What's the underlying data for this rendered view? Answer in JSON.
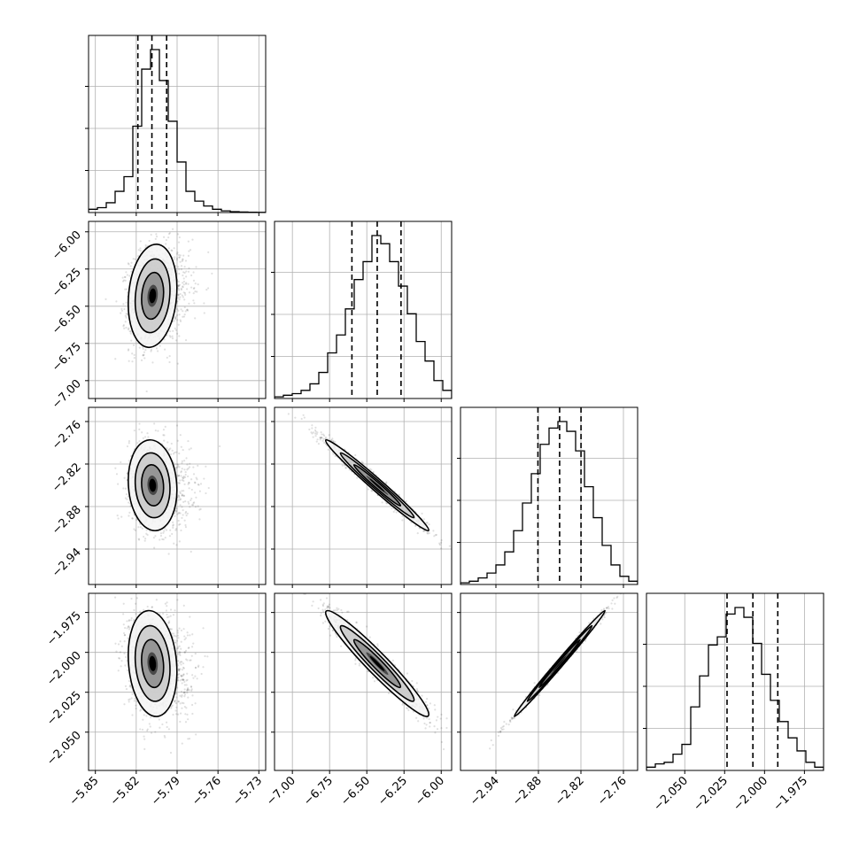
{
  "chart_data": {
    "type": "corner",
    "title": "",
    "grid": true,
    "colors": {
      "line": "#000000",
      "grid": "#b0b0b0",
      "scatter": "#000000"
    },
    "params": [
      {
        "range": [
          -5.855,
          -5.725
        ],
        "ticks": [
          -5.85,
          -5.82,
          -5.79,
          -5.76,
          -5.73
        ],
        "tick_labels": [
          "−5.85",
          "−5.82",
          "−5.79",
          "−5.76",
          "−5.73"
        ],
        "quantiles": [
          -5.8188,
          -5.8085,
          -5.7977
        ],
        "mean": -5.808,
        "sd": 0.0085,
        "hist": [
          0.02,
          0.03,
          0.06,
          0.13,
          0.22,
          0.53,
          0.88,
          1.0,
          0.81,
          0.56,
          0.31,
          0.13,
          0.07,
          0.04,
          0.02,
          0.01,
          0.005,
          0.003,
          0.002,
          0.001
        ]
      },
      {
        "range": [
          -7.12,
          -5.93
        ],
        "ticks": [
          -7.0,
          -6.75,
          -6.5,
          -6.25,
          -6.0
        ],
        "tick_labels": [
          "−7.00",
          "−6.75",
          "−6.50",
          "−6.25",
          "−6.00"
        ],
        "quantiles": [
          -6.6,
          -6.43,
          -6.27
        ],
        "mean": -6.43,
        "sd": 0.165,
        "hist": [
          0.01,
          0.02,
          0.03,
          0.05,
          0.09,
          0.16,
          0.28,
          0.39,
          0.55,
          0.73,
          0.84,
          1.0,
          0.95,
          0.84,
          0.69,
          0.52,
          0.35,
          0.23,
          0.11,
          0.05
        ]
      },
      {
        "range": [
          -2.99,
          -2.74
        ],
        "ticks": [
          -2.94,
          -2.88,
          -2.82,
          -2.76
        ],
        "tick_labels": [
          "−2.94",
          "−2.88",
          "−2.82",
          "−2.76"
        ],
        "quantiles": [
          -2.8807,
          -2.8501,
          -2.8199
        ],
        "mean": -2.85,
        "sd": 0.0305,
        "hist": [
          0.01,
          0.02,
          0.04,
          0.07,
          0.12,
          0.2,
          0.33,
          0.5,
          0.68,
          0.86,
          0.96,
          1.0,
          0.94,
          0.82,
          0.6,
          0.41,
          0.24,
          0.12,
          0.05,
          0.02
        ]
      },
      {
        "range": [
          -2.074,
          -1.963
        ],
        "ticks": [
          -2.05,
          -2.025,
          -2.0,
          -1.975
        ],
        "tick_labels": [
          "−2.050",
          "−2.025",
          "−2.000",
          "−1.975"
        ],
        "quantiles": [
          -2.0235,
          -2.0073,
          -1.9917
        ],
        "mean": -2.007,
        "sd": 0.0158,
        "hist": [
          0.02,
          0.04,
          0.05,
          0.1,
          0.16,
          0.39,
          0.58,
          0.77,
          0.82,
          0.96,
          1.0,
          0.94,
          0.78,
          0.59,
          0.43,
          0.3,
          0.2,
          0.12,
          0.05,
          0.02
        ]
      }
    ],
    "correlations": [
      [
        1.0,
        0.15,
        -0.1,
        -0.15
      ],
      [
        0.15,
        1.0,
        -0.985,
        -0.96
      ],
      [
        -0.1,
        -0.985,
        1.0,
        0.995
      ],
      [
        -0.15,
        -0.96,
        0.995,
        1.0
      ]
    ]
  }
}
